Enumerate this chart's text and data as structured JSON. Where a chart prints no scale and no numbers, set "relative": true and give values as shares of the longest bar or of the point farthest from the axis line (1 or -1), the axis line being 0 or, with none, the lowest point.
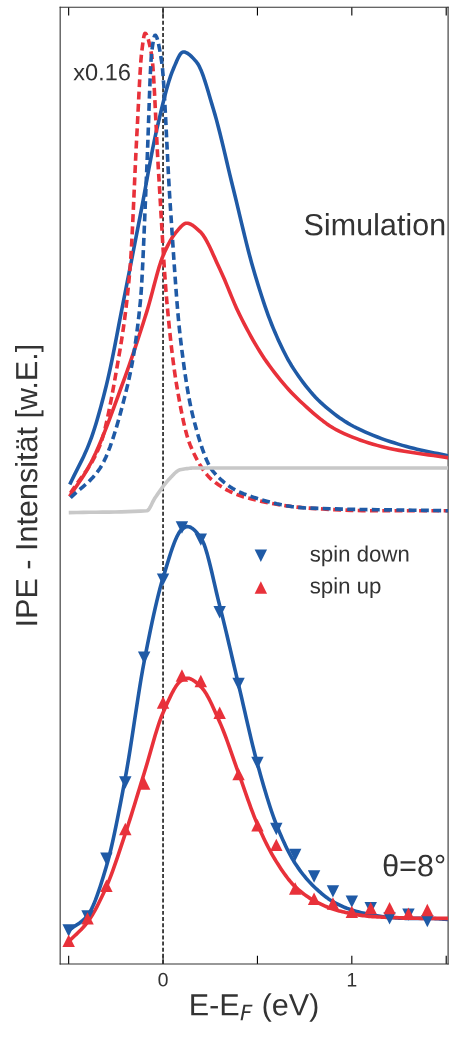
{
  "chart_data": {
    "type": "line",
    "relative": true,
    "xlabel": "E-E$_{F}$ (eV)",
    "ylabel": "IPE - Intensität [w.E.]",
    "annotations": [
      "x0.16",
      "Simulation",
      "θ=8°"
    ],
    "xlim": [
      -0.545,
      1.51
    ],
    "xticks": [
      {
        "value": -0.5,
        "label": null
      },
      0,
      {
        "value": 0.5,
        "label": null
      },
      1,
      {
        "value": 1.5,
        "label": null
      }
    ],
    "legend": "right",
    "grid": false,
    "ref_lines": [
      {
        "axis": "x",
        "value": 0,
        "label": null,
        "color": "#333333",
        "line_style": "dashed"
      }
    ],
    "series": [
      {
        "name": "spin down",
        "type": "scatter",
        "marker": "triangle_down",
        "color": "#1f5aa6",
        "x": [
          -0.5,
          -0.4,
          -0.3,
          -0.2,
          -0.1,
          0,
          0.1,
          0.2,
          0.3,
          0.4,
          0.5,
          0.6,
          0.7,
          0.8,
          0.9,
          1.0,
          1.1,
          1.2,
          1.3,
          1.4
        ],
        "values": [
          0.036,
          0.051,
          0.113,
          0.195,
          0.329,
          0.413,
          0.469,
          0.456,
          0.378,
          0.301,
          0.216,
          0.145,
          0.117,
          0.094,
          0.078,
          0.067,
          0.06,
          0.049,
          0.053,
          0.046
        ]
      },
      {
        "name": "spin up",
        "type": "scatter",
        "marker": "triangle",
        "color": "#e8313a",
        "x": [
          -0.5,
          -0.4,
          -0.3,
          -0.2,
          -0.1,
          0,
          0.1,
          0.2,
          0.3,
          0.4,
          0.5,
          0.6,
          0.7,
          0.8,
          0.9,
          1.0,
          1.1,
          1.2,
          1.3,
          1.4
        ],
        "values": [
          0.025,
          0.049,
          0.084,
          0.145,
          0.194,
          0.281,
          0.31,
          0.304,
          0.27,
          0.204,
          0.149,
          0.128,
          0.081,
          0.07,
          0.065,
          0.056,
          0.06,
          0.06,
          0.054,
          0.058
        ]
      },
      {
        "color": "#1f5aa6",
        "x": [
          -0.5,
          -0.4,
          -0.3,
          -0.2,
          -0.1,
          0,
          0.1,
          0.13,
          0.2,
          0.3,
          0.4,
          0.5,
          0.6,
          0.7,
          0.8,
          0.9,
          1.0,
          1.1,
          1.2,
          1.3,
          1.4,
          1.5
        ],
        "values": [
          0.036,
          0.052,
          0.105,
          0.2,
          0.325,
          0.415,
          0.467,
          0.47,
          0.458,
          0.385,
          0.3,
          0.215,
          0.15,
          0.108,
          0.083,
          0.067,
          0.058,
          0.053,
          0.05,
          0.049,
          0.049,
          0.048
        ]
      },
      {
        "color": "#e8313a",
        "x": [
          -0.5,
          -0.4,
          -0.3,
          -0.2,
          -0.1,
          0,
          0.1,
          0.13,
          0.2,
          0.3,
          0.4,
          0.5,
          0.6,
          0.7,
          0.8,
          0.9,
          1.0,
          1.1,
          1.2,
          1.4,
          1.5
        ],
        "values": [
          0.024,
          0.045,
          0.083,
          0.14,
          0.205,
          0.27,
          0.305,
          0.307,
          0.298,
          0.26,
          0.205,
          0.15,
          0.11,
          0.083,
          0.068,
          0.059,
          0.054,
          0.051,
          0.05,
          0.049,
          0.049
        ]
      },
      {
        "color": "#1f5aa6",
        "x": [
          -0.49,
          -0.386,
          -0.3,
          -0.21,
          -0.12,
          -0.033,
          0.055,
          0.107,
          0.178,
          0.266,
          0.372,
          0.478,
          0.584,
          0.69,
          0.848,
          1.025,
          1.29,
          1.51
        ],
        "values": [
          0.517,
          0.562,
          0.622,
          0.712,
          0.805,
          0.897,
          0.962,
          0.98,
          0.969,
          0.919,
          0.833,
          0.747,
          0.683,
          0.64,
          0.601,
          0.576,
          0.556,
          0.546
        ]
      },
      {
        "color": "#e8313a",
        "x": [
          -0.49,
          -0.386,
          -0.21,
          -0.086,
          0.002,
          0.072,
          0.125,
          0.196,
          0.3,
          0.407,
          0.549,
          0.725,
          0.937,
          1.2,
          1.51
        ],
        "values": [
          0.504,
          0.537,
          0.626,
          0.701,
          0.762,
          0.787,
          0.796,
          0.787,
          0.747,
          0.697,
          0.647,
          0.605,
          0.572,
          0.554,
          0.544
        ]
      },
      {
        "line_style": "dashed",
        "color": "#e8313a",
        "x": [
          -0.49,
          -0.333,
          -0.245,
          -0.175,
          -0.139,
          -0.113,
          -0.095,
          -0.06,
          -0.025,
          0.02,
          0.072,
          0.143,
          0.266,
          0.443,
          0.76,
          1.113,
          1.51
        ],
        "values": [
          0.506,
          0.558,
          0.64,
          0.747,
          0.89,
          0.98,
          1,
          0.976,
          0.855,
          0.712,
          0.622,
          0.558,
          0.519,
          0.501,
          0.49,
          0.487,
          0.487
        ]
      },
      {
        "line_style": "dashed",
        "color": "#1f5aa6",
        "x": [
          -0.49,
          -0.333,
          -0.21,
          -0.12,
          -0.086,
          -0.06,
          -0.042,
          -0.007,
          0.037,
          0.09,
          0.16,
          0.266,
          0.443,
          0.76,
          1.51
        ],
        "values": [
          0.501,
          0.533,
          0.604,
          0.712,
          0.855,
          0.98,
          0.998,
          0.969,
          0.819,
          0.676,
          0.587,
          0.529,
          0.504,
          0.49,
          0.487
        ]
      },
      {
        "color": "#c8c8c8",
        "x": [
          -0.49,
          -0.086,
          -0.042,
          0.037,
          0.09,
          0.178,
          1.51
        ],
        "values": [
          0.485,
          0.487,
          0.501,
          0.522,
          0.531,
          0.533,
          0.533
        ]
      }
    ]
  }
}
